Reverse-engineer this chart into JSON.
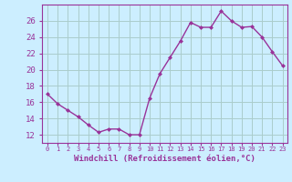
{
  "x": [
    0,
    1,
    2,
    3,
    4,
    5,
    6,
    7,
    8,
    9,
    10,
    11,
    12,
    13,
    14,
    15,
    16,
    17,
    18,
    19,
    20,
    21,
    22,
    23
  ],
  "y": [
    17.0,
    15.8,
    15.0,
    14.2,
    13.2,
    12.3,
    12.7,
    12.7,
    12.0,
    12.0,
    16.5,
    19.5,
    21.5,
    23.5,
    25.8,
    25.2,
    25.2,
    27.2,
    26.0,
    25.2,
    25.3,
    24.0,
    22.2,
    20.5
  ],
  "xlabel": "Windchill (Refroidissement éolien,°C)",
  "ylim": [
    11,
    28
  ],
  "xlim": [
    -0.5,
    23.5
  ],
  "yticks": [
    12,
    14,
    16,
    18,
    20,
    22,
    24,
    26
  ],
  "xtick_labels": [
    "0",
    "1",
    "2",
    "3",
    "4",
    "5",
    "6",
    "7",
    "8",
    "9",
    "10",
    "11",
    "12",
    "13",
    "14",
    "15",
    "16",
    "17",
    "18",
    "19",
    "20",
    "21",
    "22",
    "23"
  ],
  "line_color": "#993399",
  "marker": "D",
  "marker_size": 2.0,
  "bg_color": "#cceeff",
  "grid_color": "#aacccc",
  "axis_color": "#993399",
  "tick_color": "#993399",
  "label_color": "#993399",
  "font_name": "monospace"
}
